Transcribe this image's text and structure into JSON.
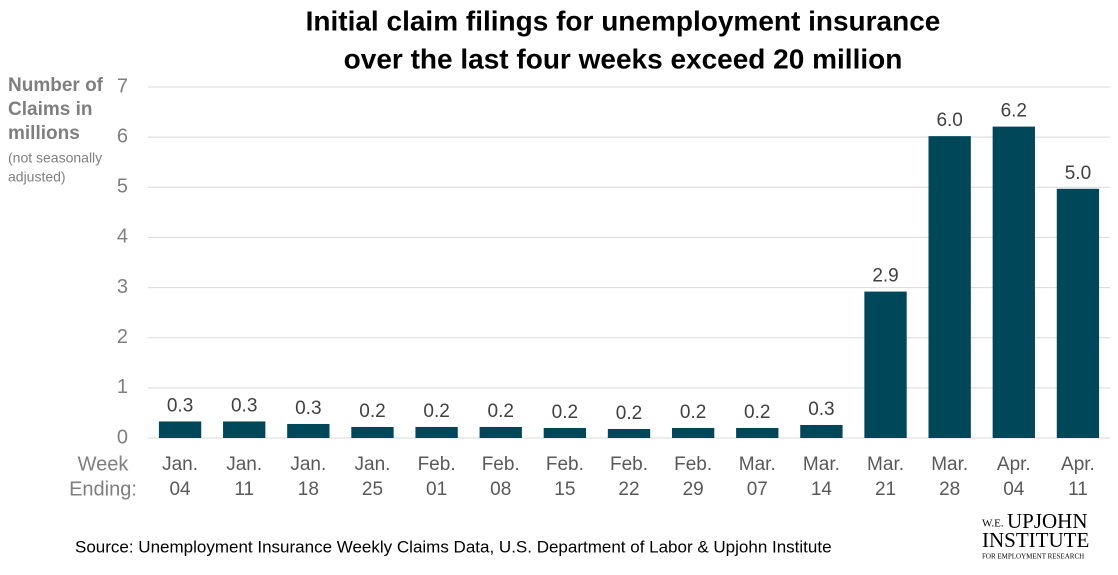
{
  "chart_data": {
    "type": "bar",
    "title": [
      "Initial claim filings for unemployment insurance",
      "over the last four weeks exceed 20 million"
    ],
    "ylabel": [
      "Number of",
      "Claims in",
      "millions"
    ],
    "ylabel_note": [
      "(not seasonally",
      "adjusted)"
    ],
    "xlabel": [
      "Week",
      "Ending:"
    ],
    "categories": [
      [
        "Jan.",
        "04"
      ],
      [
        "Jan.",
        "11"
      ],
      [
        "Jan.",
        "18"
      ],
      [
        "Jan.",
        "25"
      ],
      [
        "Feb.",
        "01"
      ],
      [
        "Feb.",
        "08"
      ],
      [
        "Feb.",
        "15"
      ],
      [
        "Feb.",
        "22"
      ],
      [
        "Feb.",
        "29"
      ],
      [
        "Mar.",
        "07"
      ],
      [
        "Mar.",
        "14"
      ],
      [
        "Mar.",
        "21"
      ],
      [
        "Mar.",
        "28"
      ],
      [
        "Apr.",
        "04"
      ],
      [
        "Apr.",
        "11"
      ]
    ],
    "values": [
      0.33,
      0.33,
      0.28,
      0.22,
      0.22,
      0.22,
      0.2,
      0.18,
      0.2,
      0.2,
      0.26,
      2.92,
      6.02,
      6.21,
      4.97
    ],
    "value_labels": [
      "0.3",
      "0.3",
      "0.3",
      "0.2",
      "0.2",
      "0.2",
      "0.2",
      "0.2",
      "0.2",
      "0.2",
      "0.3",
      "2.9",
      "6.0",
      "6.2",
      "5.0"
    ],
    "color": "#00475a",
    "ylim": [
      0,
      7
    ],
    "yticks": [
      0,
      1,
      2,
      3,
      4,
      5,
      6,
      7
    ],
    "grid": true,
    "source": "Source:  Unemployment Insurance Weekly Claims Data, U.S. Department of Labor & Upjohn Institute"
  },
  "logo": {
    "prefix": "W.E.",
    "name": "UPJOHN",
    "line2": "INSTITUTE",
    "line3": "FOR EMPLOYMENT RESEARCH"
  }
}
